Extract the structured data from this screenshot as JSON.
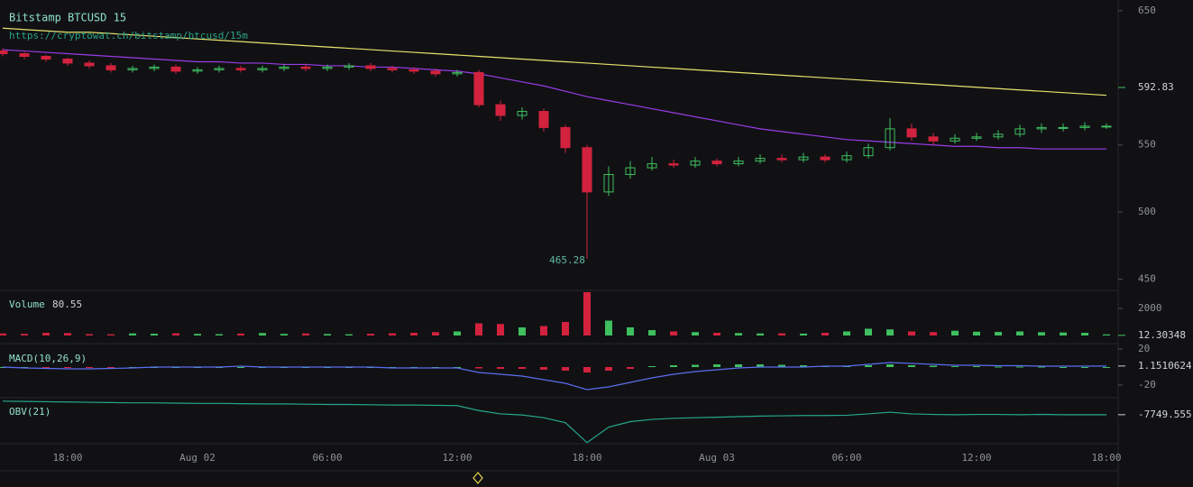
{
  "chart_data": [
    {
      "type": "candlestick",
      "title": "Bitstamp BTCUSD 15",
      "subtitle": "https://cryptowat.ch/bitstamp/btcusd/15m",
      "categories": [
        null,
        null,
        null,
        "18:00",
        null,
        null,
        null,
        null,
        null,
        "Aug 02",
        null,
        null,
        null,
        null,
        null,
        "06:00",
        null,
        null,
        null,
        null,
        null,
        "12:00",
        null,
        null,
        null,
        null,
        null,
        "18:00",
        null,
        null,
        null,
        null,
        null,
        "Aug 03",
        null,
        null,
        null,
        null,
        null,
        "06:00",
        null,
        null,
        null,
        null,
        null,
        "12:00",
        null,
        null,
        null,
        null,
        null,
        "18:00"
      ],
      "open": [
        620,
        618,
        616,
        614,
        611,
        609,
        606,
        607,
        608,
        605,
        606,
        607,
        606,
        607,
        608,
        607,
        608,
        609,
        607,
        606,
        605,
        603,
        604,
        580,
        572,
        575,
        563,
        548,
        515,
        528,
        533,
        536,
        535,
        538,
        536,
        538,
        540,
        539,
        541,
        539,
        542,
        548,
        562,
        556,
        553,
        555,
        556,
        558,
        562,
        563,
        563,
        564
      ],
      "high": [
        622,
        619,
        617,
        615,
        613,
        611,
        609,
        610,
        610,
        608,
        609,
        609,
        609,
        610,
        610,
        610,
        611,
        611,
        609,
        608,
        607,
        606,
        606,
        583,
        578,
        577,
        565,
        550,
        534,
        538,
        541,
        539,
        541,
        540,
        541,
        543,
        543,
        544,
        543,
        545,
        551,
        570,
        566,
        559,
        558,
        559,
        561,
        565,
        566,
        566,
        567,
        566
      ],
      "low": [
        616,
        614,
        612,
        609,
        607,
        604,
        604,
        605,
        603,
        603,
        604,
        604,
        604,
        605,
        605,
        605,
        606,
        605,
        604,
        603,
        601,
        601,
        578,
        568,
        569,
        560,
        544,
        465.28,
        512,
        525,
        531,
        533,
        533,
        534,
        534,
        536,
        537,
        537,
        537,
        537,
        540,
        546,
        553,
        550,
        551,
        553,
        554,
        556,
        559,
        560,
        561,
        562
      ],
      "close": [
        618,
        616,
        614,
        611,
        609,
        606,
        607,
        608,
        605,
        606,
        607,
        606,
        607,
        608,
        607,
        608,
        609,
        607,
        606,
        605,
        603,
        604,
        580,
        572,
        575,
        563,
        548,
        515,
        528,
        533,
        536,
        535,
        538,
        536,
        538,
        540,
        539,
        541,
        539,
        542,
        548,
        562,
        556,
        553,
        555,
        556,
        558,
        562,
        563,
        563,
        564,
        564
      ],
      "up_color": "#3fbf5f",
      "down_color": "#d3223e",
      "overlays": [
        {
          "color": "#e8e36c",
          "values": [
            637,
            636,
            635,
            634,
            634,
            633,
            632,
            631,
            630,
            629,
            628,
            627,
            626,
            625,
            624,
            623,
            622,
            621,
            620,
            619,
            618,
            617,
            616,
            615,
            614,
            613,
            612,
            611,
            610,
            609,
            608,
            607,
            606,
            605,
            604,
            603,
            602,
            601,
            600,
            599,
            598,
            597,
            596,
            595,
            594,
            593,
            592,
            591,
            590,
            589,
            588,
            587
          ]
        },
        {
          "color": "#9a3be6",
          "values": [
            621,
            620,
            619,
            618,
            617,
            616,
            615,
            614,
            613,
            612,
            612,
            611,
            611,
            610,
            610,
            609,
            609,
            608,
            608,
            607,
            606,
            605,
            603,
            600,
            597,
            594,
            590,
            586,
            583,
            580,
            577,
            574,
            571,
            568,
            565,
            562,
            560,
            558,
            556,
            554,
            553,
            552,
            551,
            550,
            549,
            549,
            548,
            548,
            547,
            547,
            547,
            547
          ]
        }
      ],
      "marker_value": 592.83,
      "ylim": [
        443,
        658
      ],
      "yticks": [
        450,
        500,
        550,
        650
      ]
    },
    {
      "type": "volume",
      "title": "Volume",
      "values": [
        150,
        120,
        200,
        180,
        100,
        90,
        150,
        130,
        160,
        120,
        100,
        140,
        180,
        120,
        150,
        110,
        90,
        130,
        160,
        200,
        250,
        300,
        900,
        850,
        600,
        700,
        1000,
        3200,
        1100,
        600,
        400,
        300,
        250,
        200,
        180,
        150,
        160,
        140,
        200,
        300,
        500,
        450,
        300,
        250,
        350,
        280,
        260,
        300,
        240,
        220,
        200,
        80.55
      ],
      "marker_value": 12.30348,
      "ylim": [
        0,
        3330
      ],
      "yticks": [
        2000
      ]
    },
    {
      "type": "macd",
      "title": "MACD(10,26,9)",
      "histogram": [
        0,
        0,
        -0.5,
        -0.5,
        -0.5,
        -0.5,
        0,
        0,
        0,
        0,
        0,
        0,
        0,
        0,
        0,
        0,
        0,
        0,
        0,
        0,
        0,
        0,
        -1.5,
        -2,
        -2,
        -3,
        -4,
        -6,
        -4,
        -2,
        1,
        2,
        2.5,
        3,
        3,
        3,
        2.5,
        2,
        1.5,
        1,
        2,
        3,
        2,
        1.5,
        1,
        1,
        0.5,
        0.5,
        0.5,
        0,
        0,
        0
      ],
      "up_color": "#3fbf5f",
      "down_color": "#d3223e",
      "series": [
        {
          "color": "#5a6ef0",
          "values": [
            0,
            -1,
            -1.5,
            -2,
            -2,
            -1.5,
            -1,
            0,
            0,
            0,
            0,
            1,
            0,
            0,
            0,
            0,
            0,
            0,
            -1,
            -1,
            -1,
            -1,
            -6,
            -8,
            -10,
            -14,
            -18,
            -25,
            -22,
            -17,
            -12,
            -8,
            -5,
            -3,
            -1,
            0,
            0,
            0,
            1,
            1,
            3,
            5,
            4,
            3,
            2,
            2,
            1.5,
            1.5,
            1,
            1,
            1,
            1.1510624
          ]
        }
      ],
      "ylim": [
        -33,
        24
      ],
      "yticks": [
        -20,
        20
      ]
    },
    {
      "type": "line",
      "title": "OBV(21)",
      "series": [
        {
          "color": "#26a88c",
          "values": [
            -5300,
            -5350,
            -5400,
            -5450,
            -5500,
            -5550,
            -5600,
            -5600,
            -5650,
            -5700,
            -5700,
            -5750,
            -5800,
            -5800,
            -5850,
            -5900,
            -5900,
            -5950,
            -6000,
            -6000,
            -6050,
            -6100,
            -7000,
            -7600,
            -7800,
            -8300,
            -9200,
            -12800,
            -10000,
            -9000,
            -8600,
            -8400,
            -8300,
            -8200,
            -8100,
            -8000,
            -7950,
            -7900,
            -7900,
            -7850,
            -7600,
            -7300,
            -7600,
            -7700,
            -7750,
            -7700,
            -7700,
            -7750,
            -7700,
            -7750,
            -7750,
            -7749.555
          ]
        }
      ],
      "ylim": [
        -13000,
        -5000
      ]
    }
  ]
}
